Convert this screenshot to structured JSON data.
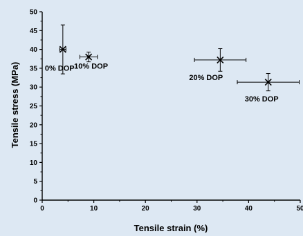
{
  "chart_data": {
    "type": "scatter",
    "title": "",
    "xlabel": "Tensile strain (%)",
    "ylabel": "Tensile stress (MPa)",
    "xlim": [
      0,
      50
    ],
    "ylim": [
      0,
      50
    ],
    "x_ticks": [
      0,
      10,
      20,
      30,
      40,
      50
    ],
    "y_ticks": [
      0,
      5,
      10,
      15,
      20,
      25,
      30,
      35,
      40,
      45,
      50
    ],
    "grid": false,
    "marker": "x",
    "colors": {
      "background": "#dde8f3",
      "axes": "#000000",
      "marker": "#000000"
    },
    "points": [
      {
        "label": "0% DOP",
        "x": 4.0,
        "y": 40.0,
        "x_err": 0.6,
        "y_err": 6.5
      },
      {
        "label": "10% DOP",
        "x": 9.0,
        "y": 38.0,
        "x_err": 1.7,
        "y_err": 1.3
      },
      {
        "label": "20% DOP",
        "x": 34.5,
        "y": 37.2,
        "x_err": 5.0,
        "y_err": 3.0
      },
      {
        "label": "30% DOP",
        "x": 43.8,
        "y": 31.3,
        "x_err": 6.0,
        "y_err": 2.3
      }
    ]
  }
}
